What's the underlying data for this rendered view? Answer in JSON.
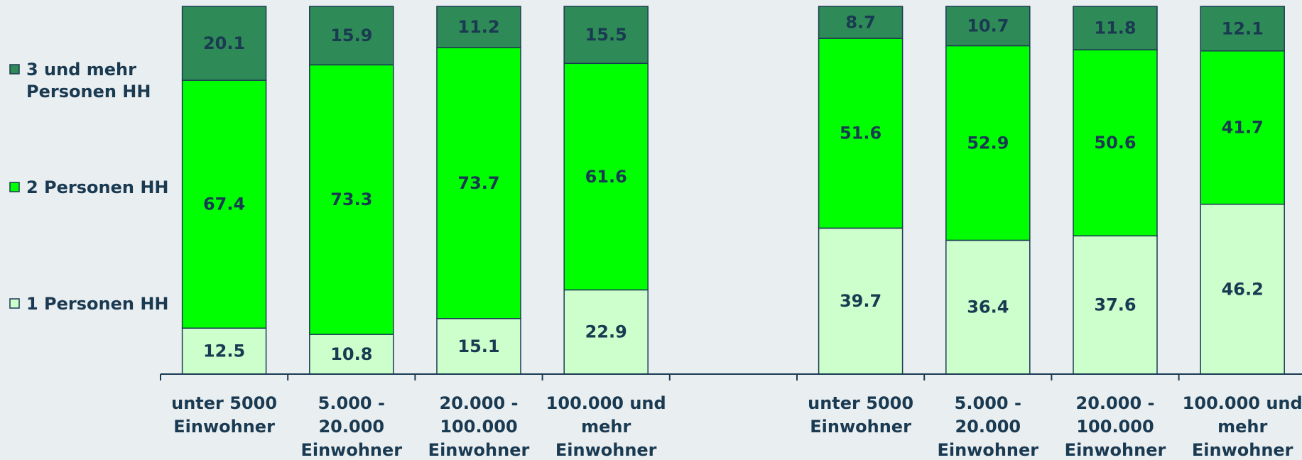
{
  "chart_data": {
    "type": "bar",
    "stacked": true,
    "percent_stacked": true,
    "categories": [
      [
        "unter 5000",
        "Einwohner"
      ],
      [
        "5.000 -",
        "20.000",
        "Einwohner"
      ],
      [
        "20.000 -",
        "100.000",
        "Einwohner"
      ],
      [
        "100.000 und",
        "mehr",
        "Einwohner"
      ],
      [],
      [
        "unter 5000",
        "Einwohner"
      ],
      [
        "5.000 -",
        "20.000",
        "Einwohner"
      ],
      [
        "20.000 -",
        "100.000",
        "Einwohner"
      ],
      [
        "100.000 und",
        "mehr",
        "Einwohner"
      ]
    ],
    "series": [
      {
        "name": "1 Personen HH",
        "color": "#ccffcc",
        "values": [
          12.5,
          10.8,
          15.1,
          22.9,
          null,
          39.7,
          36.4,
          37.6,
          46.2
        ]
      },
      {
        "name": "2 Personen HH",
        "color": "#00ff00",
        "values": [
          67.4,
          73.3,
          73.7,
          61.6,
          null,
          51.6,
          52.9,
          50.6,
          41.7
        ]
      },
      {
        "name": [
          "3 und mehr",
          "Personen HH"
        ],
        "color": "#2e8b57",
        "values": [
          20.1,
          15.9,
          11.2,
          15.5,
          null,
          8.7,
          10.7,
          11.8,
          12.1
        ]
      }
    ],
    "legend_position": "left",
    "grid": false,
    "ylim": [
      0,
      100
    ],
    "colors": {
      "text": "#1a3a52",
      "outline": "#1a3a52",
      "background": "#e9eef0"
    }
  }
}
